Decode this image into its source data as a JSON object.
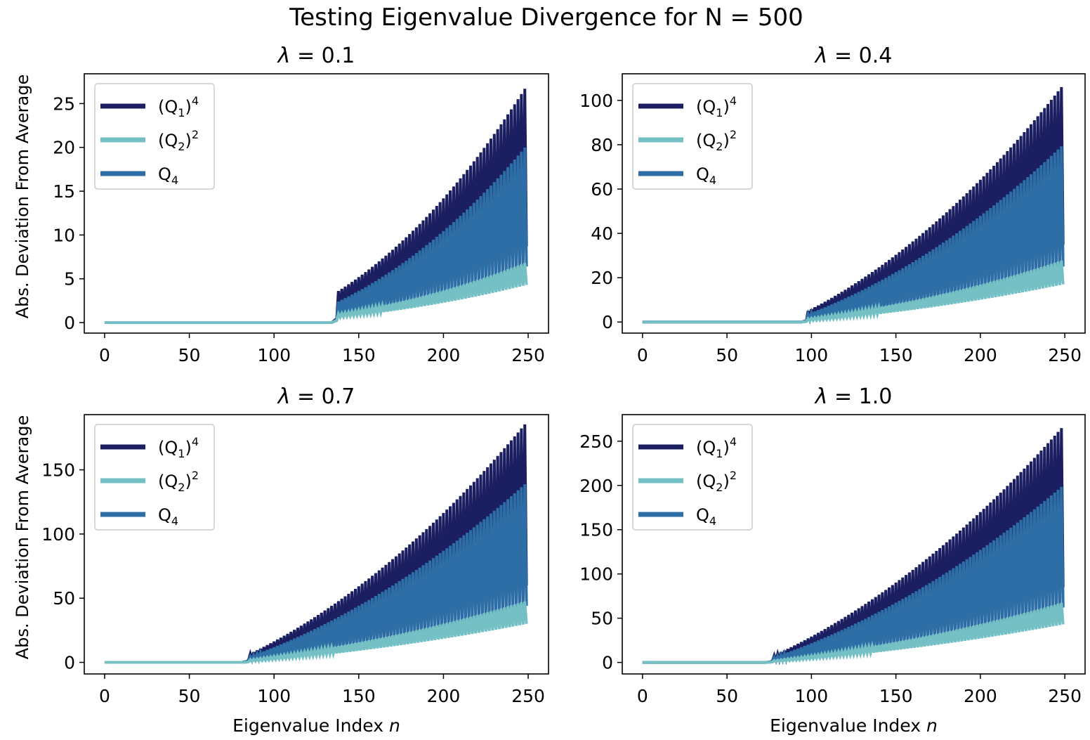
{
  "figure": {
    "suptitle": "Testing Eigenvalue Divergence for N = 500"
  },
  "colors": {
    "q1_4": "#1b1f61",
    "q2_2": "#74c0c4",
    "q4": "#2e6ea6"
  },
  "legend_labels": [
    {
      "base": "(Q",
      "sub": "1",
      "tail": ")",
      "sup": "4"
    },
    {
      "base": "(Q",
      "sub": "2",
      "tail": ")",
      "sup": "2"
    },
    {
      "base": "Q",
      "sub": "4",
      "tail": "",
      "sup": ""
    }
  ],
  "chart_data": [
    {
      "type": "line",
      "title_symbol": "λ",
      "title_value": " = 0.1",
      "ylabel": "Abs. Deviation From Average",
      "xlabel": "",
      "xlim": [
        -12,
        262
      ],
      "ylim": [
        -1.2,
        28.4
      ],
      "xticks": [
        0,
        50,
        100,
        150,
        200,
        250
      ],
      "yticks": [
        0,
        5,
        10,
        15,
        20,
        25
      ],
      "legend": "upper left",
      "grid": false,
      "onset": 138,
      "n_max": 249,
      "series": [
        {
          "name": "(Q1)^4",
          "color_key": "q1_4",
          "hi_start": 3.6,
          "hi_end": 27.0,
          "lo_start": 1.2,
          "lo_end": 8.7
        },
        {
          "name": "Q4",
          "color_key": "q4",
          "hi_start": 2.4,
          "hi_end": 20.2,
          "lo_start": 0.9,
          "lo_end": 6.4
        },
        {
          "name": "(Q2)^2",
          "color_key": "q2_2",
          "hi_start": 1.0,
          "hi_end": 6.9,
          "lo_start": 0.6,
          "lo_end": 4.3
        }
      ]
    },
    {
      "type": "line",
      "title_symbol": "λ",
      "title_value": " = 0.4",
      "ylabel": "",
      "xlabel": "",
      "xlim": [
        -12,
        262
      ],
      "ylim": [
        -5,
        112
      ],
      "xticks": [
        0,
        50,
        100,
        150,
        200,
        250
      ],
      "yticks": [
        0,
        20,
        40,
        60,
        80,
        100
      ],
      "legend": "upper left",
      "grid": false,
      "onset": 98,
      "n_max": 249,
      "series": [
        {
          "name": "(Q1)^4",
          "color_key": "q1_4",
          "hi_start": 5.0,
          "hi_end": 107.0,
          "lo_start": 1.5,
          "lo_end": 35.0
        },
        {
          "name": "Q4",
          "color_key": "q4",
          "hi_start": 3.5,
          "hi_end": 80.0,
          "lo_start": 1.0,
          "lo_end": 25.0
        },
        {
          "name": "(Q2)^2",
          "color_key": "q2_2",
          "hi_start": 1.5,
          "hi_end": 28.0,
          "lo_start": 0.5,
          "lo_end": 17.0
        }
      ]
    },
    {
      "type": "line",
      "title_symbol": "λ",
      "title_value": " = 0.7",
      "ylabel": "Abs. Deviation From Average",
      "xlabel": "Eigenvalue Index n",
      "xlim": [
        -12,
        262
      ],
      "ylim": [
        -9,
        193
      ],
      "xticks": [
        0,
        50,
        100,
        150,
        200,
        250
      ],
      "yticks": [
        0,
        50,
        100,
        150
      ],
      "legend": "upper left",
      "grid": false,
      "onset": 85,
      "n_max": 249,
      "series": [
        {
          "name": "(Q1)^4",
          "color_key": "q1_4",
          "hi_start": 6.0,
          "hi_end": 187.0,
          "lo_start": 2.0,
          "lo_end": 60.0
        },
        {
          "name": "Q4",
          "color_key": "q4",
          "hi_start": 4.0,
          "hi_end": 140.0,
          "lo_start": 1.5,
          "lo_end": 44.0
        },
        {
          "name": "(Q2)^2",
          "color_key": "q2_2",
          "hi_start": 2.0,
          "hi_end": 48.0,
          "lo_start": 0.5,
          "lo_end": 30.0
        }
      ]
    },
    {
      "type": "line",
      "title_symbol": "λ",
      "title_value": " = 1.0",
      "ylabel": "",
      "xlabel": "Eigenvalue Index n",
      "xlim": [
        -12,
        262
      ],
      "ylim": [
        -13,
        280
      ],
      "xticks": [
        0,
        50,
        100,
        150,
        200,
        250
      ],
      "yticks": [
        0,
        50,
        100,
        150,
        200,
        250
      ],
      "legend": "upper left",
      "grid": false,
      "onset": 77,
      "n_max": 249,
      "series": [
        {
          "name": "(Q1)^4",
          "color_key": "q1_4",
          "hi_start": 7.0,
          "hi_end": 267.0,
          "lo_start": 2.0,
          "lo_end": 85.0
        },
        {
          "name": "Q4",
          "color_key": "q4",
          "hi_start": 5.0,
          "hi_end": 200.0,
          "lo_start": 1.5,
          "lo_end": 62.0
        },
        {
          "name": "(Q2)^2",
          "color_key": "q2_2",
          "hi_start": 2.0,
          "hi_end": 68.0,
          "lo_start": 0.5,
          "lo_end": 43.0
        }
      ]
    }
  ]
}
